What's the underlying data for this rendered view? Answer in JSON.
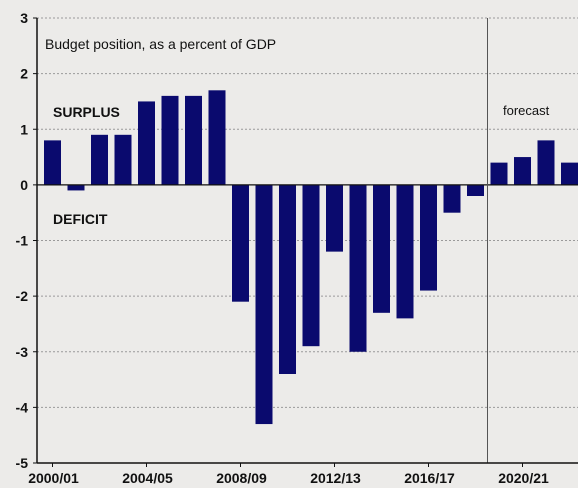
{
  "chart_data": {
    "type": "bar",
    "title": "Budget position, as a percent of GDP",
    "xlabel": "",
    "ylabel": "",
    "ylim": [
      -5,
      3
    ],
    "yticks": [
      3,
      2,
      1,
      0,
      -1,
      -2,
      -3,
      -4,
      -5
    ],
    "grid": true,
    "color": "#0a0a6e",
    "categories": [
      "2000/01",
      "2001/02",
      "2002/03",
      "2003/04",
      "2004/05",
      "2005/06",
      "2006/07",
      "2007/08",
      "2008/09",
      "2009/10",
      "2010/11",
      "2011/12",
      "2012/13",
      "2013/14",
      "2014/15",
      "2015/16",
      "2016/17",
      "2017/18",
      "2018/19",
      "2019/20",
      "2020/21",
      "2021/22",
      "2022/23"
    ],
    "values": [
      0.8,
      -0.1,
      0.9,
      0.9,
      1.5,
      1.6,
      1.6,
      1.7,
      -2.1,
      -4.3,
      -3.4,
      -2.9,
      -1.2,
      -3.0,
      -2.3,
      -2.4,
      -1.9,
      -0.5,
      -0.2,
      0.4,
      0.5,
      0.8,
      0.4
    ],
    "xtick_labels": [
      "2000/01",
      "2004/05",
      "2008/09",
      "2012/13",
      "2016/17",
      "2020/21"
    ],
    "annotations": {
      "surplus": "SURPLUS",
      "deficit": "DEFICIT",
      "forecast": "forecast"
    }
  }
}
